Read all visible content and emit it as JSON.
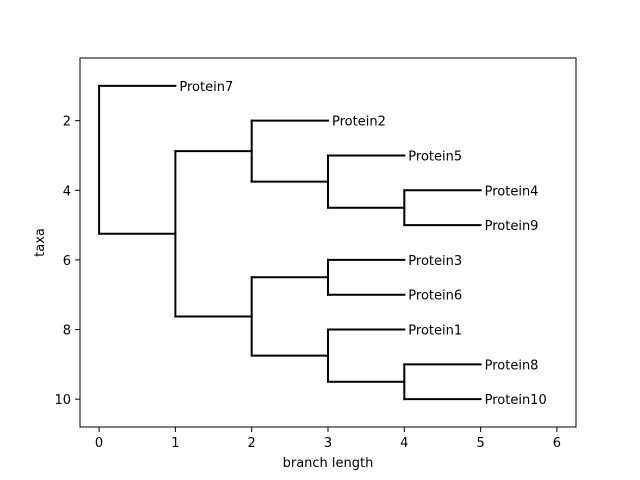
{
  "chart_data": {
    "type": "tree",
    "xlabel": "branch length",
    "ylabel": "taxa",
    "xlim": [
      -0.25,
      6.25
    ],
    "ylim": [
      10.8,
      0.2
    ],
    "xticks": [
      0,
      1,
      2,
      3,
      4,
      5,
      6
    ],
    "yticks": [
      2,
      4,
      6,
      8,
      10
    ],
    "grid": false,
    "tree": {
      "children": [
        {
          "label": "Protein7",
          "length": 1
        },
        {
          "length": 1,
          "children": [
            {
              "length": 1,
              "children": [
                {
                  "label": "Protein2",
                  "length": 1
                },
                {
                  "length": 1,
                  "children": [
                    {
                      "label": "Protein5",
                      "length": 1
                    },
                    {
                      "length": 1,
                      "children": [
                        {
                          "label": "Protein4",
                          "length": 1
                        },
                        {
                          "label": "Protein9",
                          "length": 1
                        }
                      ]
                    }
                  ]
                }
              ]
            },
            {
              "length": 1,
              "children": [
                {
                  "length": 1,
                  "children": [
                    {
                      "label": "Protein3",
                      "length": 1
                    },
                    {
                      "label": "Protein6",
                      "length": 1
                    }
                  ]
                },
                {
                  "length": 1,
                  "children": [
                    {
                      "label": "Protein1",
                      "length": 1
                    },
                    {
                      "length": 1,
                      "children": [
                        {
                          "label": "Protein8",
                          "length": 1
                        },
                        {
                          "label": "Protein10",
                          "length": 1
                        }
                      ]
                    }
                  ]
                }
              ]
            }
          ]
        }
      ]
    }
  }
}
